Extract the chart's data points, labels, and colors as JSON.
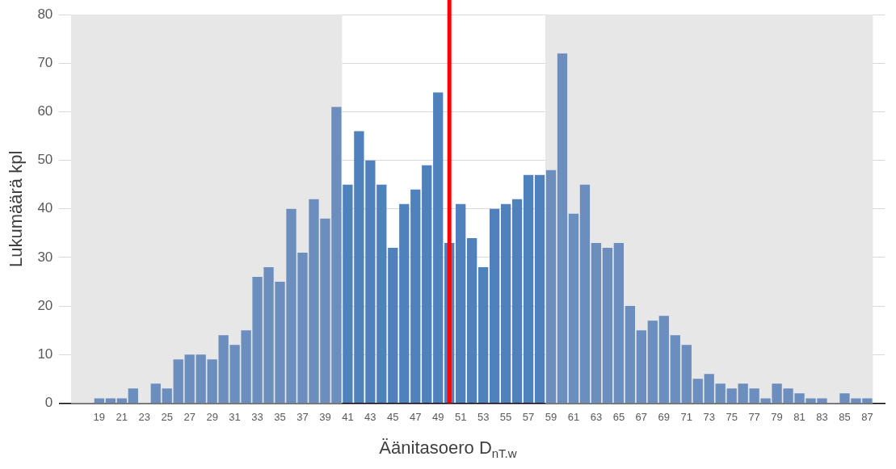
{
  "chart_data": {
    "type": "bar",
    "xlabel": "Äänitasoero D$_{nT.w}$",
    "ylabel": "Lukumäärä kpl",
    "x": [
      17,
      18,
      19,
      20,
      21,
      22,
      23,
      24,
      25,
      26,
      27,
      28,
      29,
      30,
      31,
      32,
      33,
      34,
      35,
      36,
      37,
      38,
      39,
      40,
      41,
      42,
      43,
      44,
      45,
      46,
      47,
      48,
      49,
      50,
      51,
      52,
      53,
      54,
      55,
      56,
      57,
      58,
      59,
      60,
      61,
      62,
      63,
      64,
      65,
      66,
      67,
      68,
      69,
      70,
      71,
      72,
      73,
      74,
      75,
      76,
      77,
      78,
      79,
      80,
      81,
      82,
      83,
      84,
      85,
      86,
      87
    ],
    "values": [
      0,
      0,
      1,
      1,
      1,
      3,
      0,
      4,
      3,
      9,
      10,
      10,
      9,
      14,
      12,
      15,
      26,
      28,
      25,
      40,
      31,
      42,
      38,
      61,
      45,
      56,
      50,
      45,
      32,
      41,
      44,
      49,
      64,
      33,
      41,
      34,
      28,
      40,
      41,
      42,
      47,
      47,
      48,
      72,
      39,
      45,
      33,
      32,
      33,
      20,
      15,
      17,
      18,
      14,
      12,
      5,
      6,
      4,
      3,
      4,
      3,
      1,
      4,
      3,
      2,
      1,
      1,
      0,
      2,
      1,
      1
    ],
    "colors": [
      "#6b8ebf",
      "#6b8ebf",
      "#6b8ebf",
      "#6b8ebf",
      "#6b8ebf",
      "#6b8ebf",
      "#6b8ebf",
      "#6b8ebf",
      "#6b8ebf",
      "#6b8ebf",
      "#6b8ebf",
      "#6b8ebf",
      "#6b8ebf",
      "#6b8ebf",
      "#6b8ebf",
      "#6b8ebf",
      "#6b8ebf",
      "#6b8ebf",
      "#6b8ebf",
      "#6b8ebf",
      "#6b8ebf",
      "#6b8ebf",
      "#6b8ebf",
      "#6b8ebf",
      "#4f81bd",
      "#4f81bd",
      "#4f81bd",
      "#4f81bd",
      "#4f81bd",
      "#4f81bd",
      "#4f81bd",
      "#4f81bd",
      "#4f81bd",
      "#4f81bd",
      "#4f81bd",
      "#4f81bd",
      "#4f81bd",
      "#4f81bd",
      "#4f81bd",
      "#4f81bd",
      "#4f81bd",
      "#4f81bd",
      "#6b8ebf",
      "#6b8ebf",
      "#6b8ebf",
      "#6b8ebf",
      "#6b8ebf",
      "#6b8ebf",
      "#6b8ebf",
      "#6b8ebf",
      "#6b8ebf",
      "#6b8ebf",
      "#6b8ebf",
      "#6b8ebf",
      "#6b8ebf",
      "#6b8ebf",
      "#6b8ebf",
      "#6b8ebf",
      "#6b8ebf",
      "#6b8ebf",
      "#6b8ebf",
      "#6b8ebf",
      "#6b8ebf",
      "#6b8ebf",
      "#6b8ebf",
      "#6b8ebf",
      "#6b8ebf",
      "#6b8ebf",
      "#6b8ebf",
      "#6b8ebf",
      "#6b8ebf"
    ],
    "xlim": [
      16.5,
      87.5
    ],
    "xticks": [
      19,
      21,
      23,
      25,
      27,
      29,
      31,
      33,
      35,
      37,
      39,
      41,
      43,
      45,
      47,
      49,
      51,
      53,
      55,
      57,
      59,
      61,
      63,
      65,
      67,
      69,
      71,
      73,
      75,
      77,
      79,
      81,
      83,
      85,
      87
    ],
    "ylim": [
      0,
      80
    ],
    "yticks": [
      0,
      10,
      20,
      30,
      40,
      50,
      60,
      70,
      80
    ],
    "grid": "y",
    "legend": false,
    "bands": [
      {
        "axis": "x",
        "from": 16.5,
        "to": 40.5,
        "color": "#e7e7e7"
      },
      {
        "axis": "x",
        "from": 58.5,
        "to": 87.5,
        "color": "#e7e7e7"
      }
    ],
    "ref_lines": [
      {
        "axis": "x",
        "value": 50,
        "color": "#ff0000"
      }
    ]
  }
}
